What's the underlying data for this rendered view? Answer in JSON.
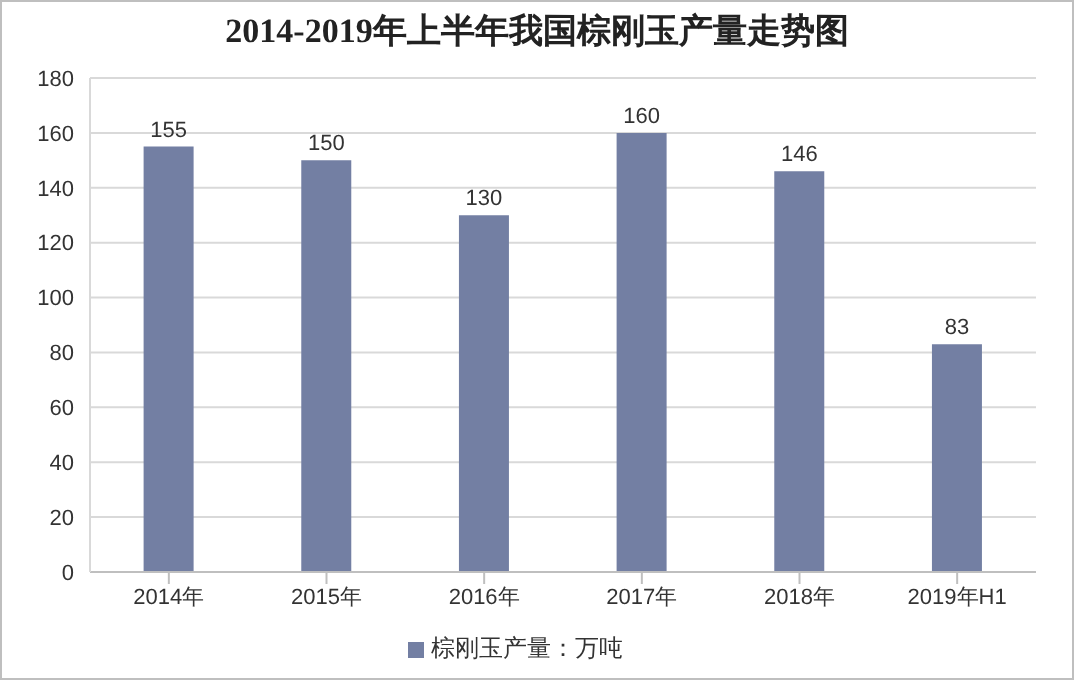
{
  "chart_data": {
    "type": "bar",
    "title": "2014-2019年上半年我国棕刚玉产量走势图",
    "categories": [
      "2014年",
      "2015年",
      "2016年",
      "2017年",
      "2018年",
      "2019年H1"
    ],
    "series": [
      {
        "name": "棕刚玉产量：万吨",
        "color": "#737fa3",
        "values": [
          155,
          150,
          130,
          160,
          146,
          83
        ]
      }
    ],
    "ylim": [
      0,
      180
    ],
    "yticks": [
      0,
      20,
      40,
      60,
      80,
      100,
      120,
      140,
      160,
      180
    ],
    "grid": "y",
    "legend": "bottom",
    "data_labels": true
  }
}
